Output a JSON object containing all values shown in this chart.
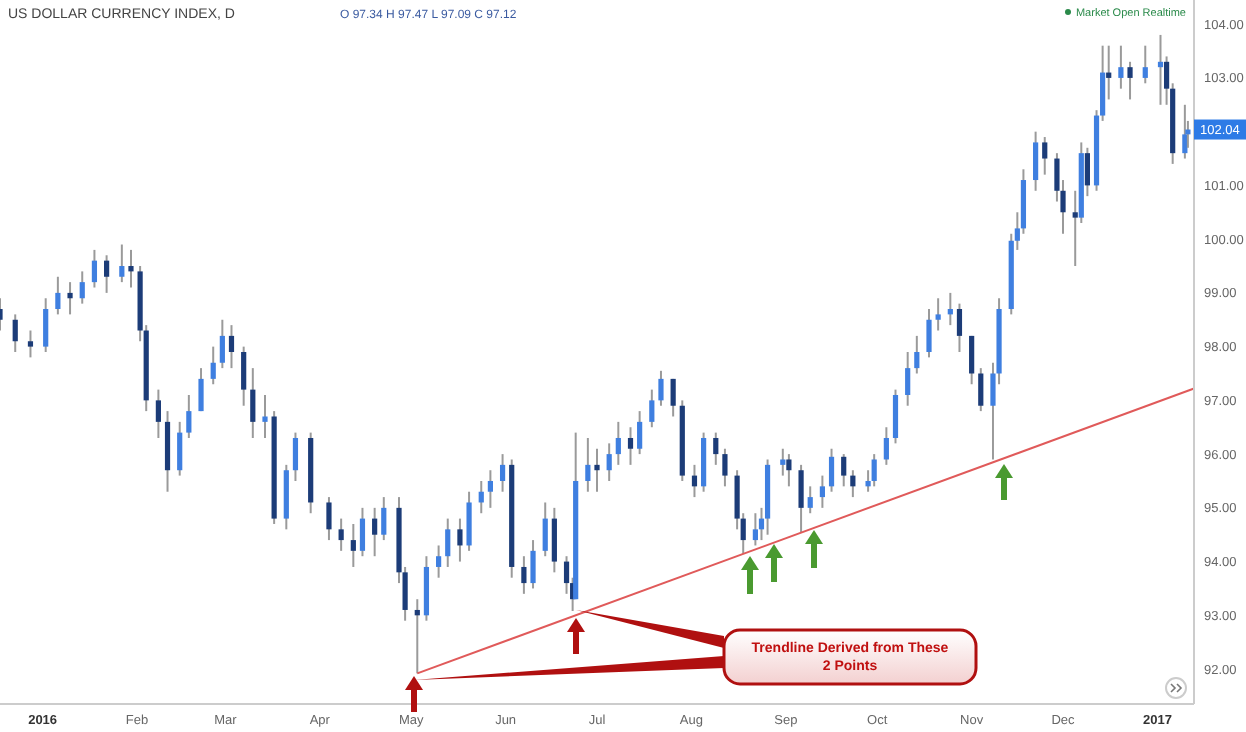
{
  "chart_data": {
    "type": "candlestick",
    "title": "US DOLLAR CURRENCY INDEX, D",
    "annotations": [
      "O 97.34 H 97.47 L 97.09 C 97.12",
      "Market Open Realtime",
      {
        "text": "102.04",
        "x": "2017-01-11",
        "y": 102.04
      },
      "Trendline Derived from These 2 Points"
    ],
    "xlim": [
      "2015-12-18",
      "2017-01-13"
    ],
    "xticks": [
      {
        "value": "2016-01-01",
        "label": "2016"
      },
      {
        "value": "2016-02-01",
        "label": "Feb"
      },
      {
        "value": "2016-03-01",
        "label": "Mar"
      },
      {
        "value": "2016-04-01",
        "label": "Apr"
      },
      {
        "value": "2016-05-01",
        "label": "May"
      },
      {
        "value": "2016-06-01",
        "label": "Jun"
      },
      {
        "value": "2016-07-01",
        "label": "Jul"
      },
      {
        "value": "2016-08-01",
        "label": "Aug"
      },
      {
        "value": "2016-09-01",
        "label": "Sep"
      },
      {
        "value": "2016-10-01",
        "label": "Oct"
      },
      {
        "value": "2016-11-01",
        "label": "Nov"
      },
      {
        "value": "2016-12-01",
        "label": "Dec"
      },
      {
        "value": "2017-01-01",
        "label": "2017"
      }
    ],
    "ylim": [
      91.35,
      104.45
    ],
    "yticks": [
      {
        "value": 92,
        "label": "92.00"
      },
      {
        "value": 93,
        "label": "93.00"
      },
      {
        "value": 94,
        "label": "94.00"
      },
      {
        "value": 95,
        "label": "95.00"
      },
      {
        "value": 96,
        "label": "96.00"
      },
      {
        "value": 97,
        "label": "97.00"
      },
      {
        "value": 98,
        "label": "98.00"
      },
      {
        "value": 99,
        "label": "99.00"
      },
      {
        "value": 100,
        "label": "100.00"
      },
      {
        "value": 101,
        "label": "101.00"
      },
      {
        "value": 102,
        "label": null
      },
      {
        "value": 103,
        "label": "103.00"
      },
      {
        "value": 104,
        "label": "104.00"
      }
    ],
    "grid": false,
    "x": [
      "2015-12-18",
      "2015-12-23",
      "2015-12-28",
      "2016-01-02",
      "2016-01-06",
      "2016-01-10",
      "2016-01-14",
      "2016-01-18",
      "2016-01-22",
      "2016-01-27",
      "2016-01-30",
      "2016-02-02",
      "2016-02-04",
      "2016-02-08",
      "2016-02-11",
      "2016-02-15",
      "2016-02-18",
      "2016-02-22",
      "2016-02-26",
      "2016-02-29",
      "2016-03-03",
      "2016-03-07",
      "2016-03-10",
      "2016-03-14",
      "2016-03-17",
      "2016-03-21",
      "2016-03-24",
      "2016-03-29",
      "2016-04-04",
      "2016-04-08",
      "2016-04-12",
      "2016-04-15",
      "2016-04-19",
      "2016-04-22",
      "2016-04-27",
      "2016-04-29",
      "2016-05-03",
      "2016-05-06",
      "2016-05-10",
      "2016-05-13",
      "2016-05-17",
      "2016-05-20",
      "2016-05-24",
      "2016-05-27",
      "2016-05-31",
      "2016-06-03",
      "2016-06-07",
      "2016-06-10",
      "2016-06-14",
      "2016-06-17",
      "2016-06-21",
      "2016-06-23",
      "2016-06-24",
      "2016-06-28",
      "2016-07-01",
      "2016-07-05",
      "2016-07-08",
      "2016-07-12",
      "2016-07-15",
      "2016-07-19",
      "2016-07-22",
      "2016-07-26",
      "2016-07-29",
      "2016-08-02",
      "2016-08-05",
      "2016-08-09",
      "2016-08-12",
      "2016-08-16",
      "2016-08-18",
      "2016-08-22",
      "2016-08-24",
      "2016-08-26",
      "2016-08-31",
      "2016-09-02",
      "2016-09-06",
      "2016-09-09",
      "2016-09-13",
      "2016-09-16",
      "2016-09-20",
      "2016-09-23",
      "2016-09-28",
      "2016-09-30",
      "2016-10-04",
      "2016-10-07",
      "2016-10-11",
      "2016-10-14",
      "2016-10-18",
      "2016-10-21",
      "2016-10-25",
      "2016-10-28",
      "2016-11-01",
      "2016-11-04",
      "2016-11-08",
      "2016-11-10",
      "2016-11-14",
      "2016-11-16",
      "2016-11-18",
      "2016-11-22",
      "2016-11-25",
      "2016-11-29",
      "2016-12-01",
      "2016-12-05",
      "2016-12-07",
      "2016-12-09",
      "2016-12-12",
      "2016-12-14",
      "2016-12-16",
      "2016-12-20",
      "2016-12-23",
      "2016-12-28",
      "2017-01-02",
      "2017-01-04",
      "2017-01-06",
      "2017-01-10",
      "2017-01-11"
    ],
    "ohlc": [
      [
        98.7,
        98.9,
        98.3,
        98.5
      ],
      [
        98.5,
        98.6,
        97.9,
        98.1
      ],
      [
        98.1,
        98.3,
        97.8,
        98.0
      ],
      [
        98.0,
        98.9,
        97.9,
        98.7
      ],
      [
        98.7,
        99.3,
        98.6,
        99.0
      ],
      [
        99.0,
        99.2,
        98.6,
        98.9
      ],
      [
        98.9,
        99.4,
        98.8,
        99.2
      ],
      [
        99.2,
        99.8,
        99.1,
        99.6
      ],
      [
        99.6,
        99.7,
        99.0,
        99.3
      ],
      [
        99.3,
        99.9,
        99.2,
        99.5
      ],
      [
        99.5,
        99.8,
        99.1,
        99.4
      ],
      [
        99.4,
        99.5,
        98.1,
        98.3
      ],
      [
        98.3,
        98.4,
        96.8,
        97.0
      ],
      [
        97.0,
        97.2,
        96.3,
        96.6
      ],
      [
        96.6,
        96.8,
        95.3,
        95.7
      ],
      [
        95.7,
        96.6,
        95.6,
        96.4
      ],
      [
        96.4,
        97.1,
        96.3,
        96.8
      ],
      [
        96.8,
        97.6,
        96.8,
        97.4
      ],
      [
        97.4,
        98.0,
        97.3,
        97.7
      ],
      [
        97.7,
        98.5,
        97.6,
        98.2
      ],
      [
        98.2,
        98.4,
        97.6,
        97.9
      ],
      [
        97.9,
        98.0,
        96.9,
        97.2
      ],
      [
        97.2,
        97.6,
        96.3,
        96.6
      ],
      [
        96.6,
        97.1,
        96.3,
        96.7
      ],
      [
        96.7,
        96.8,
        94.7,
        94.8
      ],
      [
        94.8,
        95.8,
        94.6,
        95.7
      ],
      [
        95.7,
        96.4,
        95.5,
        96.3
      ],
      [
        96.3,
        96.4,
        94.9,
        95.1
      ],
      [
        95.1,
        95.2,
        94.4,
        94.6
      ],
      [
        94.6,
        94.8,
        94.2,
        94.4
      ],
      [
        94.4,
        94.7,
        93.9,
        94.2
      ],
      [
        94.2,
        95.0,
        94.1,
        94.8
      ],
      [
        94.8,
        95.0,
        94.1,
        94.5
      ],
      [
        94.5,
        95.2,
        94.4,
        95.0
      ],
      [
        95.0,
        95.2,
        93.6,
        93.8
      ],
      [
        93.8,
        93.9,
        92.9,
        93.1
      ],
      [
        93.1,
        93.3,
        91.92,
        93.0
      ],
      [
        93.0,
        94.1,
        92.9,
        93.9
      ],
      [
        93.9,
        94.3,
        93.7,
        94.1
      ],
      [
        94.1,
        94.8,
        93.9,
        94.6
      ],
      [
        94.6,
        94.8,
        94.0,
        94.3
      ],
      [
        94.3,
        95.3,
        94.2,
        95.1
      ],
      [
        95.1,
        95.5,
        94.9,
        95.3
      ],
      [
        95.3,
        95.7,
        95.0,
        95.5
      ],
      [
        95.5,
        96.0,
        95.3,
        95.8
      ],
      [
        95.8,
        95.9,
        93.7,
        93.9
      ],
      [
        93.9,
        94.1,
        93.4,
        93.6
      ],
      [
        93.6,
        94.4,
        93.5,
        94.2
      ],
      [
        94.2,
        95.1,
        94.1,
        94.8
      ],
      [
        94.8,
        95.0,
        93.8,
        94.0
      ],
      [
        94.0,
        94.1,
        93.4,
        93.6
      ],
      [
        93.6,
        93.7,
        93.08,
        93.3
      ],
      [
        93.3,
        96.4,
        93.3,
        95.5
      ],
      [
        95.5,
        96.3,
        95.3,
        95.8
      ],
      [
        95.8,
        96.1,
        95.3,
        95.7
      ],
      [
        95.7,
        96.2,
        95.5,
        96.0
      ],
      [
        96.0,
        96.6,
        95.8,
        96.3
      ],
      [
        96.3,
        96.5,
        95.8,
        96.1
      ],
      [
        96.1,
        96.8,
        96.0,
        96.6
      ],
      [
        96.6,
        97.2,
        96.5,
        97.0
      ],
      [
        97.0,
        97.55,
        96.9,
        97.4
      ],
      [
        97.4,
        97.4,
        96.7,
        96.9
      ],
      [
        96.9,
        97.0,
        95.5,
        95.6
      ],
      [
        95.6,
        95.8,
        95.2,
        95.4
      ],
      [
        95.4,
        96.4,
        95.3,
        96.3
      ],
      [
        96.3,
        96.4,
        95.8,
        96.0
      ],
      [
        96.0,
        96.1,
        95.4,
        95.6
      ],
      [
        95.6,
        95.7,
        94.6,
        94.8
      ],
      [
        94.8,
        94.9,
        94.15,
        94.4
      ],
      [
        94.4,
        94.9,
        94.3,
        94.6
      ],
      [
        94.6,
        95.0,
        94.4,
        94.8
      ],
      [
        94.8,
        95.9,
        94.5,
        95.8
      ],
      [
        95.8,
        96.1,
        95.6,
        95.9
      ],
      [
        95.9,
        96.0,
        95.4,
        95.7
      ],
      [
        95.7,
        95.8,
        94.55,
        95.0
      ],
      [
        95.0,
        95.4,
        94.9,
        95.2
      ],
      [
        95.2,
        95.6,
        95.0,
        95.4
      ],
      [
        95.4,
        96.1,
        95.3,
        95.95
      ],
      [
        95.95,
        96.0,
        95.4,
        95.6
      ],
      [
        95.6,
        95.7,
        95.2,
        95.4
      ],
      [
        95.4,
        95.7,
        95.3,
        95.5
      ],
      [
        95.5,
        96.0,
        95.4,
        95.9
      ],
      [
        95.9,
        96.5,
        95.8,
        96.3
      ],
      [
        96.3,
        97.2,
        96.2,
        97.1
      ],
      [
        97.1,
        97.9,
        96.9,
        97.6
      ],
      [
        97.6,
        98.2,
        97.5,
        97.9
      ],
      [
        97.9,
        98.7,
        97.8,
        98.5
      ],
      [
        98.5,
        98.9,
        98.3,
        98.6
      ],
      [
        98.6,
        99.0,
        98.4,
        98.7
      ],
      [
        98.7,
        98.8,
        97.9,
        98.2
      ],
      [
        98.2,
        98.2,
        97.3,
        97.5
      ],
      [
        97.5,
        97.6,
        96.8,
        96.9
      ],
      [
        96.9,
        97.7,
        95.9,
        97.5
      ],
      [
        97.5,
        98.9,
        97.3,
        98.7
      ],
      [
        98.7,
        100.1,
        98.6,
        99.97
      ],
      [
        99.97,
        100.5,
        99.8,
        100.2
      ],
      [
        100.2,
        101.3,
        100.1,
        101.1
      ],
      [
        101.1,
        102.0,
        100.9,
        101.8
      ],
      [
        101.8,
        101.9,
        101.2,
        101.5
      ],
      [
        101.5,
        101.6,
        100.7,
        100.9
      ],
      [
        100.9,
        101.1,
        100.1,
        100.5
      ],
      [
        100.5,
        100.9,
        99.5,
        100.4
      ],
      [
        100.4,
        101.8,
        100.3,
        101.6
      ],
      [
        101.6,
        101.7,
        100.8,
        101.0
      ],
      [
        101.0,
        102.4,
        100.9,
        102.3
      ],
      [
        102.3,
        103.6,
        102.2,
        103.1
      ],
      [
        103.1,
        103.6,
        102.6,
        103.0
      ],
      [
        103.0,
        103.6,
        102.8,
        103.2
      ],
      [
        103.2,
        103.3,
        102.6,
        103.0
      ],
      [
        103.0,
        103.6,
        102.9,
        103.2
      ],
      [
        103.2,
        103.8,
        102.5,
        103.3
      ],
      [
        103.3,
        103.4,
        102.5,
        102.8
      ],
      [
        102.8,
        102.9,
        101.4,
        101.6
      ],
      [
        101.6,
        102.5,
        101.5,
        101.95
      ],
      [
        101.95,
        102.2,
        101.7,
        102.04
      ]
    ],
    "colors": [
      "#1c3c78",
      "#1c3c78",
      "#1c3c78",
      "#3f7fe0",
      "#3f7fe0",
      "#1c3c78",
      "#3f7fe0",
      "#3f7fe0",
      "#1c3c78",
      "#3f7fe0",
      "#1c3c78",
      "#1c3c78",
      "#1c3c78",
      "#1c3c78",
      "#1c3c78",
      "#3f7fe0",
      "#3f7fe0",
      "#3f7fe0",
      "#3f7fe0",
      "#3f7fe0",
      "#1c3c78",
      "#1c3c78",
      "#1c3c78",
      "#3f7fe0",
      "#1c3c78",
      "#3f7fe0",
      "#3f7fe0",
      "#1c3c78",
      "#1c3c78",
      "#1c3c78",
      "#1c3c78",
      "#3f7fe0",
      "#1c3c78",
      "#3f7fe0",
      "#1c3c78",
      "#1c3c78",
      "#1c3c78",
      "#3f7fe0",
      "#3f7fe0",
      "#3f7fe0",
      "#1c3c78",
      "#3f7fe0",
      "#3f7fe0",
      "#3f7fe0",
      "#3f7fe0",
      "#1c3c78",
      "#1c3c78",
      "#3f7fe0",
      "#3f7fe0",
      "#1c3c78",
      "#1c3c78",
      "#1c3c78",
      "#3f7fe0",
      "#3f7fe0",
      "#1c3c78",
      "#3f7fe0",
      "#3f7fe0",
      "#1c3c78",
      "#3f7fe0",
      "#3f7fe0",
      "#3f7fe0",
      "#1c3c78",
      "#1c3c78",
      "#1c3c78",
      "#3f7fe0",
      "#1c3c78",
      "#1c3c78",
      "#1c3c78",
      "#1c3c78",
      "#3f7fe0",
      "#3f7fe0",
      "#3f7fe0",
      "#3f7fe0",
      "#1c3c78",
      "#1c3c78",
      "#3f7fe0",
      "#3f7fe0",
      "#3f7fe0",
      "#1c3c78",
      "#1c3c78",
      "#3f7fe0",
      "#3f7fe0",
      "#3f7fe0",
      "#3f7fe0",
      "#3f7fe0",
      "#3f7fe0",
      "#3f7fe0",
      "#3f7fe0",
      "#3f7fe0",
      "#1c3c78",
      "#1c3c78",
      "#1c3c78",
      "#3f7fe0",
      "#3f7fe0",
      "#3f7fe0",
      "#3f7fe0",
      "#3f7fe0",
      "#3f7fe0",
      "#1c3c78",
      "#1c3c78",
      "#1c3c78",
      "#1c3c78",
      "#3f7fe0",
      "#1c3c78",
      "#3f7fe0",
      "#3f7fe0",
      "#1c3c78",
      "#3f7fe0",
      "#1c3c78",
      "#3f7fe0",
      "#3f7fe0",
      "#1c3c78",
      "#1c3c78",
      "#3f7fe0",
      "#3f7fe0"
    ],
    "series": [
      {
        "type": "line",
        "color": "#e05a5a",
        "x": [
          "2016-05-03",
          "2017-01-13"
        ],
        "values": [
          91.92,
          97.22
        ]
      }
    ]
  }
}
